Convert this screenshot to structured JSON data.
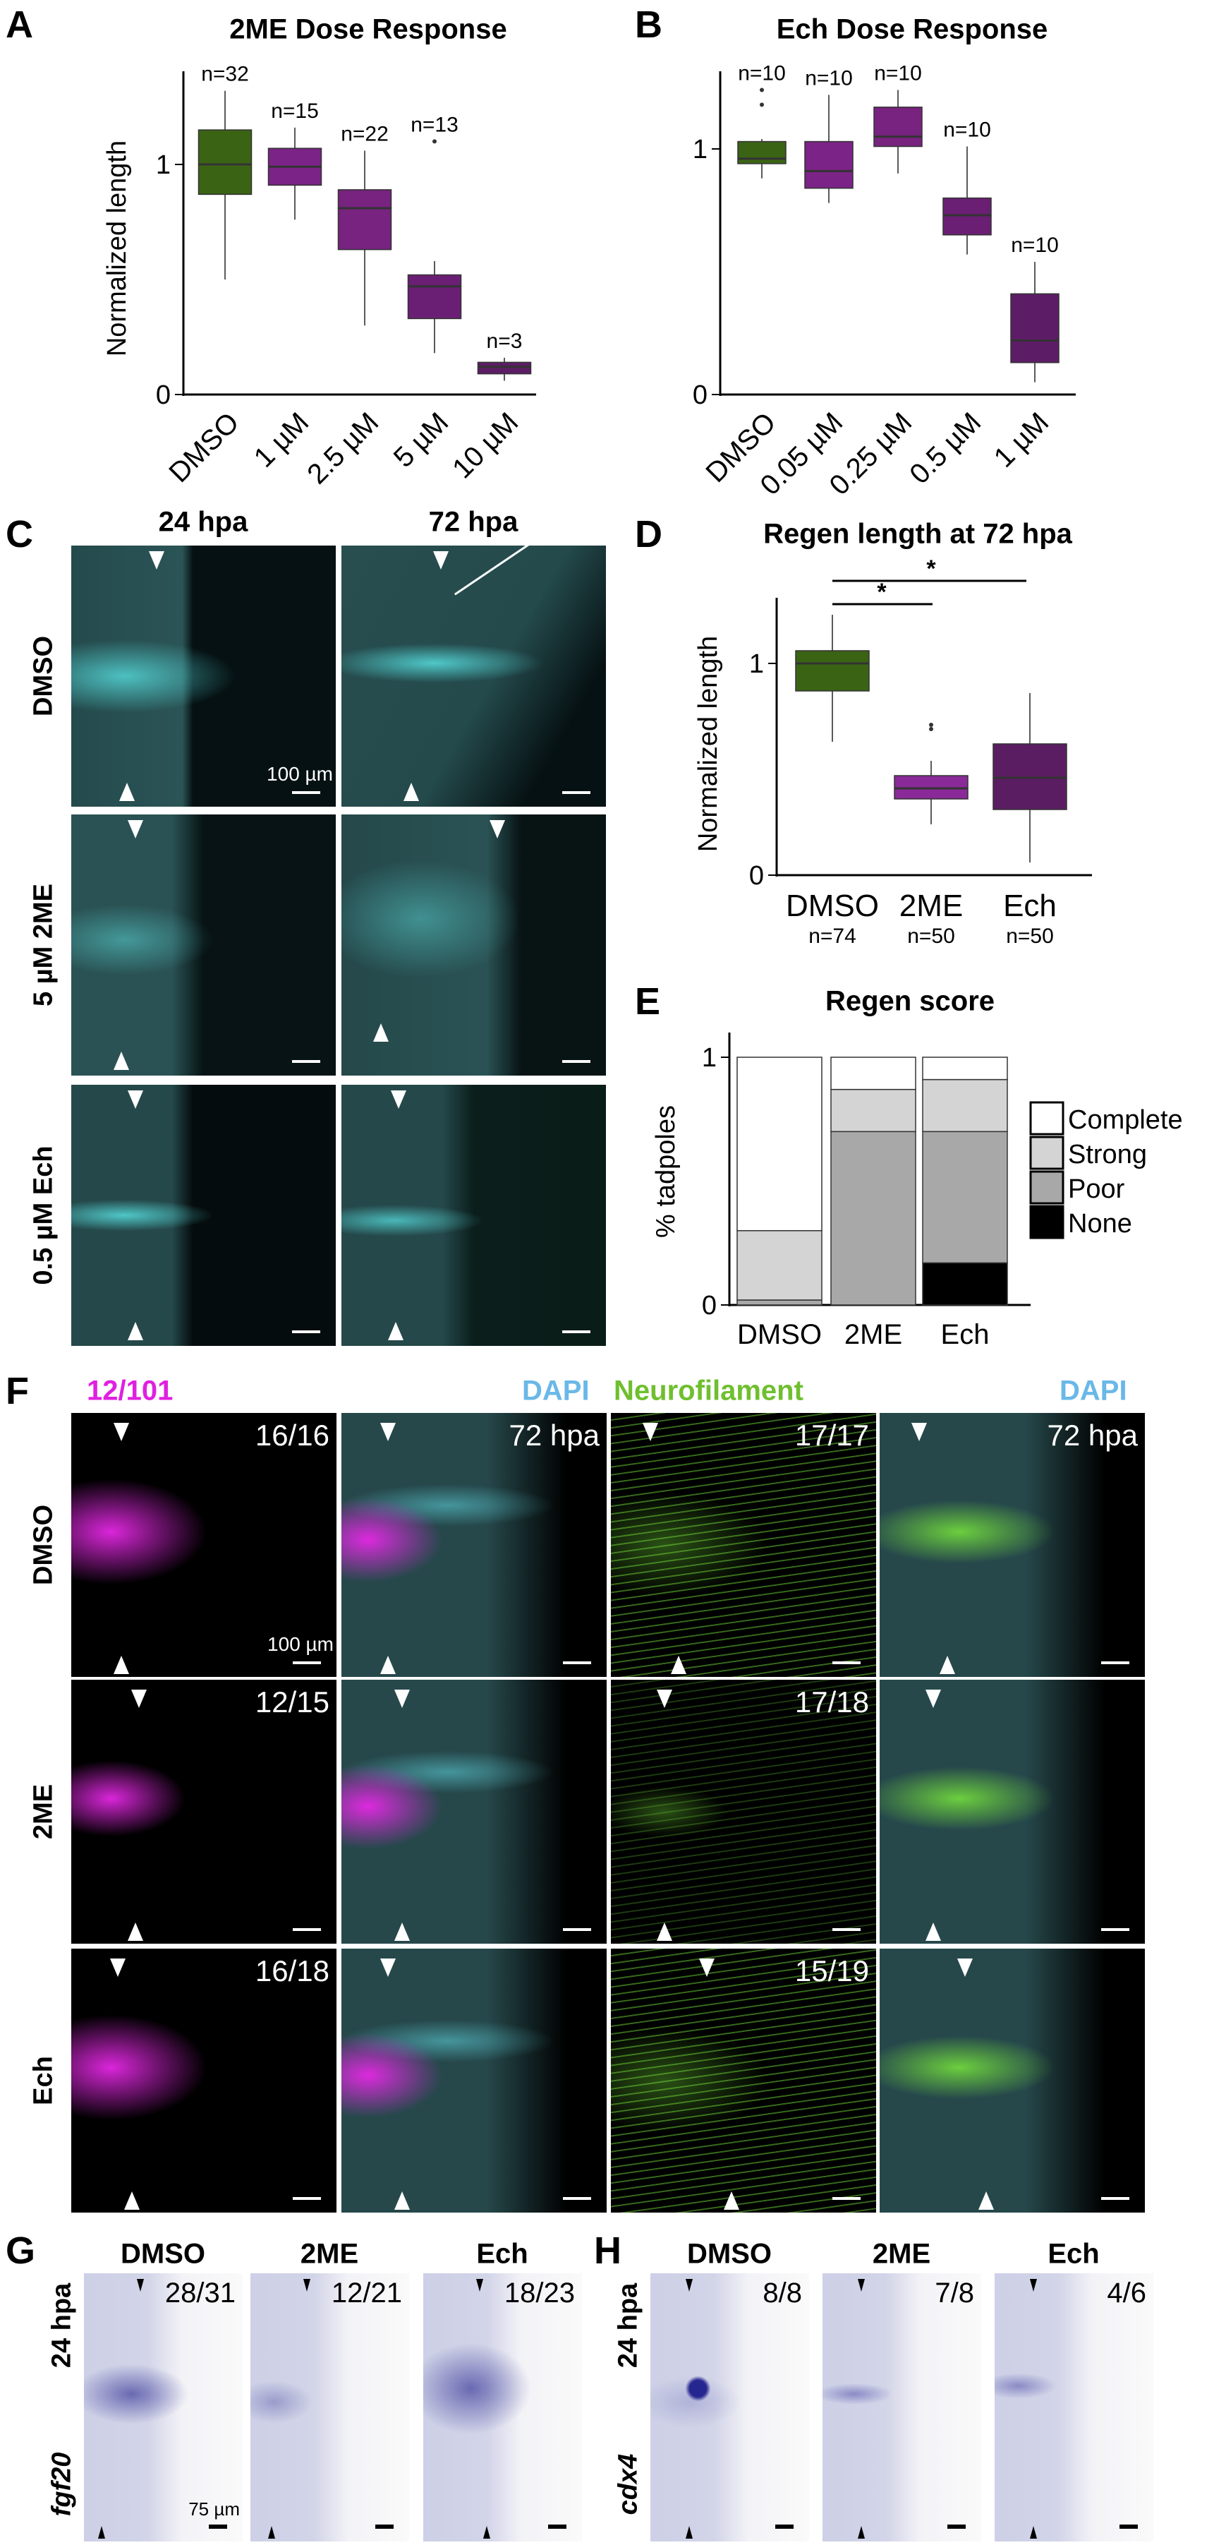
{
  "panels": {
    "A": {
      "label": "A",
      "title": "2ME Dose Response"
    },
    "B": {
      "label": "B",
      "title": "Ech Dose Response"
    },
    "C": {
      "label": "C",
      "columns": [
        "24 hpa",
        "72 hpa"
      ],
      "rows": [
        "DMSO",
        "5 µM 2ME",
        "0.5 µM Ech"
      ],
      "scale_label": "100 µm"
    },
    "D": {
      "label": "D",
      "title": "Regen length at 72 hpa"
    },
    "E": {
      "label": "E",
      "title": "Regen score"
    },
    "F": {
      "label": "F",
      "headers": [
        {
          "text": "12/101",
          "color": "#e020e0"
        },
        {
          "text": "DAPI",
          "color": "#6ab8e8"
        },
        {
          "text": "Neurofilament",
          "color": "#6fbf2e"
        },
        {
          "text": "DAPI",
          "color": "#6ab8e8"
        }
      ],
      "rows": [
        "DMSO",
        "2ME",
        "Ech"
      ],
      "counts": [
        [
          "16/16",
          "72 hpa",
          "17/17",
          "72 hpa"
        ],
        [
          "12/15",
          "",
          "17/18",
          ""
        ],
        [
          "16/18",
          "",
          "15/19",
          ""
        ]
      ],
      "scale_label": "100 µm"
    },
    "G": {
      "label": "G",
      "columns": [
        "DMSO",
        "2ME",
        "Ech"
      ],
      "row_label": "24 hpa",
      "gene": "fgf20",
      "counts": [
        "28/31",
        "12/21",
        "18/23"
      ],
      "scale_label": "75 µm"
    },
    "H": {
      "label": "H",
      "columns": [
        "DMSO",
        "2ME",
        "Ech"
      ],
      "row_label": "24 hpa",
      "gene": "cdx4",
      "counts": [
        "8/8",
        "7/8",
        "4/6"
      ]
    }
  },
  "chart_data": [
    {
      "id": "A",
      "type": "box",
      "title": "2ME Dose Response",
      "xlabel": "",
      "ylabel": "Normalized length",
      "ylim": [
        0,
        1.35
      ],
      "yticks": [
        0,
        1
      ],
      "categories": [
        "DMSO",
        "1 µM",
        "2.5 µM",
        "5 µM",
        "10 µM"
      ],
      "colors": [
        "#3b6314",
        "#7b2387",
        "#77237f",
        "#6a1f74",
        "#5c1d66"
      ],
      "boxes": [
        {
          "whisker_low": 0.5,
          "q1": 0.87,
          "median": 1.0,
          "q3": 1.15,
          "whisker_high": 1.32,
          "outliers": [],
          "n": "n=32"
        },
        {
          "whisker_low": 0.76,
          "q1": 0.91,
          "median": 0.99,
          "q3": 1.07,
          "whisker_high": 1.16,
          "outliers": [],
          "n": "n=15"
        },
        {
          "whisker_low": 0.3,
          "q1": 0.63,
          "median": 0.81,
          "q3": 0.89,
          "whisker_high": 1.06,
          "outliers": [],
          "n": "n=22"
        },
        {
          "whisker_low": 0.18,
          "q1": 0.33,
          "median": 0.47,
          "q3": 0.52,
          "whisker_high": 0.58,
          "outliers": [
            1.1
          ],
          "n": "n=13"
        },
        {
          "whisker_low": 0.06,
          "q1": 0.09,
          "median": 0.12,
          "q3": 0.14,
          "whisker_high": 0.16,
          "outliers": [],
          "n": "n=3"
        }
      ]
    },
    {
      "id": "B",
      "type": "box",
      "title": "Ech Dose Response",
      "xlabel": "",
      "ylabel": "",
      "ylim": [
        0,
        1.3
      ],
      "yticks": [
        0,
        1
      ],
      "categories": [
        "DMSO",
        "0.05 µM",
        "0.25 µM",
        "0.5 µM",
        "1 µM"
      ],
      "colors": [
        "#3b6314",
        "#7b2387",
        "#77237f",
        "#6a1f74",
        "#5c1d66"
      ],
      "boxes": [
        {
          "whisker_low": 0.88,
          "q1": 0.94,
          "median": 0.96,
          "q3": 1.03,
          "whisker_high": 1.04,
          "outliers": [
            1.18,
            1.24
          ],
          "n": "n=10"
        },
        {
          "whisker_low": 0.78,
          "q1": 0.84,
          "median": 0.91,
          "q3": 1.03,
          "whisker_high": 1.22,
          "outliers": [],
          "n": "n=10"
        },
        {
          "whisker_low": 0.9,
          "q1": 1.01,
          "median": 1.05,
          "q3": 1.17,
          "whisker_high": 1.24,
          "outliers": [],
          "n": "n=10"
        },
        {
          "whisker_low": 0.57,
          "q1": 0.65,
          "median": 0.73,
          "q3": 0.8,
          "whisker_high": 1.01,
          "outliers": [],
          "n": "n=10"
        },
        {
          "whisker_low": 0.05,
          "q1": 0.13,
          "median": 0.22,
          "q3": 0.41,
          "whisker_high": 0.54,
          "outliers": [],
          "n": "n=10"
        }
      ]
    },
    {
      "id": "D",
      "type": "box",
      "title": "Regen length at 72 hpa",
      "xlabel": "",
      "ylabel": "Normalized length",
      "ylim": [
        0,
        1.3
      ],
      "yticks": [
        0,
        1
      ],
      "categories": [
        "DMSO",
        "2ME",
        "Ech"
      ],
      "colors": [
        "#3b6314",
        "#8a2a98",
        "#5a1d62"
      ],
      "boxes": [
        {
          "whisker_low": 0.63,
          "q1": 0.87,
          "median": 1.0,
          "q3": 1.06,
          "whisker_high": 1.23,
          "outliers": [],
          "n": "n=74"
        },
        {
          "whisker_low": 0.24,
          "q1": 0.36,
          "median": 0.41,
          "q3": 0.47,
          "whisker_high": 0.54,
          "outliers": [
            0.69,
            0.71
          ],
          "n": "n=50"
        },
        {
          "whisker_low": 0.06,
          "q1": 0.31,
          "median": 0.46,
          "q3": 0.62,
          "whisker_high": 0.86,
          "outliers": [],
          "n": "n=50"
        }
      ],
      "significance": [
        {
          "from": "DMSO",
          "to": "2ME",
          "label": "*"
        },
        {
          "from": "DMSO",
          "to": "Ech",
          "label": "*"
        }
      ]
    },
    {
      "id": "E",
      "type": "bar",
      "stacked": true,
      "title": "Regen score",
      "xlabel": "",
      "ylabel": "% tadpoles",
      "ylim": [
        0,
        1
      ],
      "yticks": [
        0,
        1
      ],
      "categories": [
        "DMSO",
        "2ME",
        "Ech"
      ],
      "series": [
        {
          "name": "None",
          "color": "#000000",
          "values": [
            0.0,
            0.0,
            0.17
          ]
        },
        {
          "name": "Poor",
          "color": "#a8a8a8",
          "values": [
            0.02,
            0.7,
            0.53
          ]
        },
        {
          "name": "Strong",
          "color": "#d4d4d4",
          "values": [
            0.28,
            0.17,
            0.21
          ]
        },
        {
          "name": "Complete",
          "color": "#ffffff",
          "values": [
            0.7,
            0.13,
            0.09
          ]
        }
      ],
      "legend": [
        "Complete",
        "Strong",
        "Poor",
        "None"
      ],
      "legend_position": "right"
    }
  ]
}
